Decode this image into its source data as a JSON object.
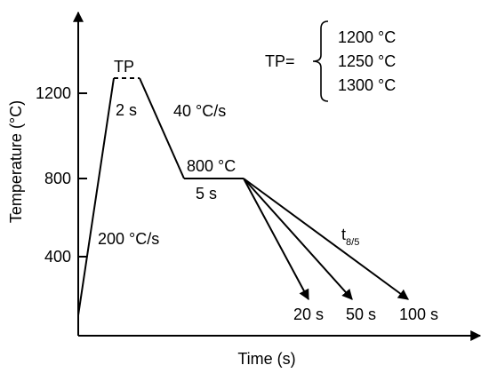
{
  "axes": {
    "x_label": "Time (s)",
    "y_label": "Temperature (°C)",
    "y_ticks": [
      "1200",
      "800",
      "400"
    ]
  },
  "peak": {
    "label": "TP",
    "hold": "2 s"
  },
  "heating_rate": "200 °C/s",
  "cooling_rate": "40 °C/s",
  "plateau": {
    "temperature": "800 °C",
    "hold": "5 s"
  },
  "cooling_time": {
    "symbol": "t",
    "subscript": "8/5",
    "options": [
      "20 s",
      "50 s",
      "100 s"
    ]
  },
  "tp_legend": {
    "label": "TP=",
    "values": [
      "1200 °C",
      "1250 °C",
      "1300 °C"
    ]
  }
}
